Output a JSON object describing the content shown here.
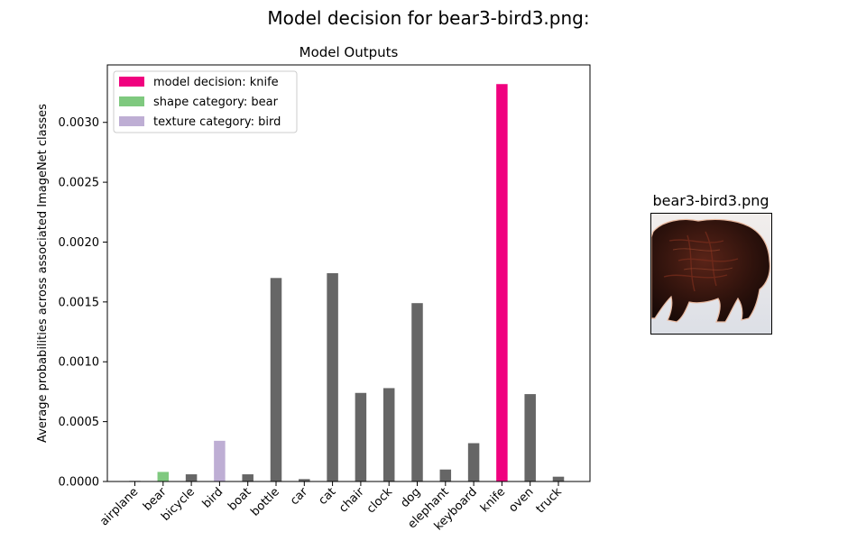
{
  "figure_title": "Model decision for bear3-bird3.png:",
  "thumbnail": {
    "title": "bear3-bird3.png"
  },
  "chart_data": {
    "type": "bar",
    "title": "Model Outputs",
    "xlabel": "",
    "ylabel": "Average probabilities across associated ImageNet classes",
    "ylim": [
      0,
      0.00348
    ],
    "yticks": [
      "0.0000",
      "0.0005",
      "0.0010",
      "0.0015",
      "0.0020",
      "0.0025",
      "0.0030"
    ],
    "ytick_values": [
      0,
      0.0005,
      0.001,
      0.0015,
      0.002,
      0.0025,
      0.003
    ],
    "grid": false,
    "legend_position": "top-left",
    "categories": [
      "airplane",
      "bear",
      "bicycle",
      "bird",
      "boat",
      "bottle",
      "car",
      "cat",
      "chair",
      "clock",
      "dog",
      "elephant",
      "keyboard",
      "knife",
      "oven",
      "truck"
    ],
    "values": [
      5e-06,
      8e-05,
      6e-05,
      0.00034,
      6e-05,
      0.0017,
      2e-05,
      0.00174,
      0.00074,
      0.00078,
      0.00149,
      0.0001,
      0.00032,
      0.00332,
      0.00073,
      4e-05
    ],
    "colors": {
      "default": "#666666",
      "shape": "#7fc97f",
      "texture": "#beaed4",
      "decision": "#f0027f"
    },
    "highlights": {
      "bear": "shape",
      "bird": "texture",
      "knife": "decision"
    },
    "legend": [
      {
        "label": "model decision: knife",
        "color": "#f0027f"
      },
      {
        "label": "shape category: bear",
        "color": "#7fc97f"
      },
      {
        "label": "texture category: bird",
        "color": "#beaed4"
      }
    ]
  }
}
